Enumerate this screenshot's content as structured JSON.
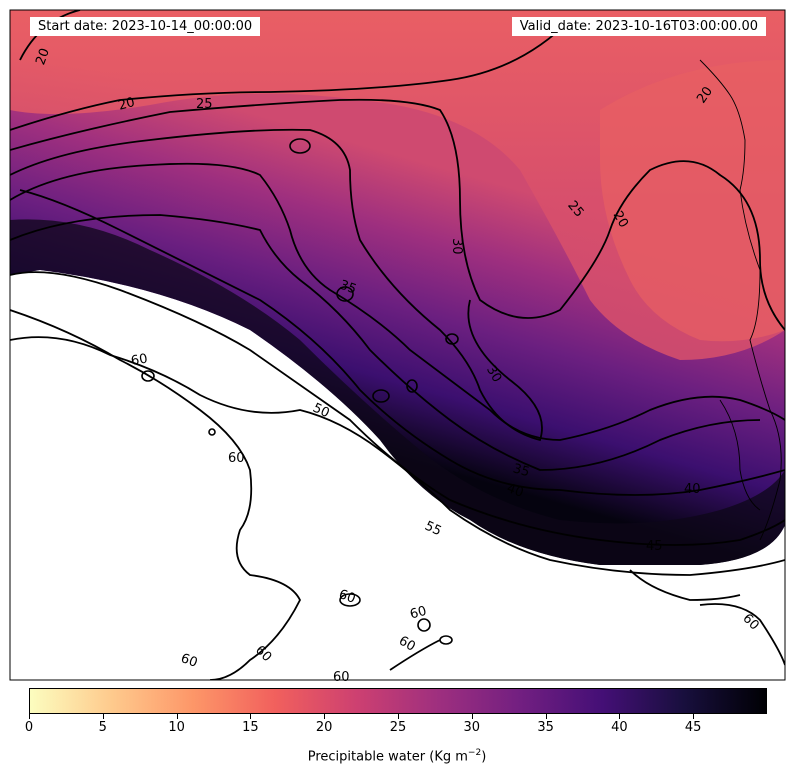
{
  "header": {
    "start_date": "Start date: 2023-10-14_00:00:00",
    "valid_date": "Valid_date: 2023-10-16T03:00:00.00"
  },
  "contour_labels": [
    "20",
    "20",
    "25",
    "20",
    "25",
    "20",
    "30",
    "35",
    "30",
    "35",
    "40",
    "40",
    "45",
    "50",
    "55",
    "60",
    "60",
    "60",
    "60",
    "60",
    "60",
    "60",
    "60",
    "60"
  ],
  "colorbar": {
    "label": "Precipitable water (Kg m",
    "label_exponent": "−2",
    "label_close": ")",
    "ticks": [
      "0",
      "5",
      "10",
      "15",
      "20",
      "25",
      "30",
      "35",
      "40",
      "45"
    ],
    "min": 0,
    "max": 50,
    "colormap": "magma_r",
    "colors": [
      "#fcfdbf",
      "#feca8d",
      "#fd9668",
      "#f1605d",
      "#cd4071",
      "#9e2f7f",
      "#721f81",
      "#440f76",
      "#180f3d",
      "#000004"
    ]
  }
}
